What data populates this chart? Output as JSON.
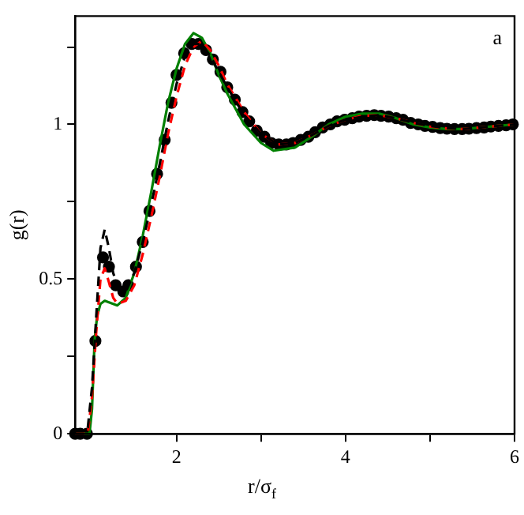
{
  "chart_data": {
    "type": "line",
    "xlabel": "r/σ$_{f}$",
    "ylabel": "g(r)",
    "annotations": [
      "a"
    ],
    "xlim": [
      0.8,
      6
    ],
    "ylim": [
      0,
      1.35
    ],
    "xticks": [
      2,
      {
        "value": 3,
        "label": null
      },
      4,
      {
        "value": 5,
        "label": null
      },
      6
    ],
    "yticks": [
      0,
      {
        "value": 0.25,
        "label": null
      },
      0.5,
      {
        "value": 0.75,
        "label": null
      },
      1,
      {
        "value": 1.25,
        "label": null
      }
    ],
    "grid": false,
    "legend": false,
    "series": [
      {
        "color": "#000000",
        "line_style": "dashed",
        "marker": "none",
        "x": [
          0.8,
          0.9,
          0.95,
          1.0,
          1.05,
          1.1,
          1.15,
          1.2,
          1.25,
          1.3,
          1.4,
          1.5,
          1.6,
          1.7,
          1.8,
          1.9,
          2.0,
          2.1,
          2.2,
          2.3,
          2.4,
          2.5,
          2.6,
          2.8,
          3.0,
          3.2,
          3.4,
          3.6,
          3.8,
          4.0,
          4.2,
          4.4,
          4.6,
          4.8,
          5.0,
          5.2,
          5.4,
          5.6,
          5.8,
          6.0
        ],
        "values": [
          0,
          0,
          0.02,
          0.15,
          0.38,
          0.6,
          0.66,
          0.6,
          0.52,
          0.48,
          0.46,
          0.52,
          0.62,
          0.74,
          0.87,
          1.01,
          1.13,
          1.22,
          1.26,
          1.26,
          1.22,
          1.17,
          1.12,
          1.03,
          0.97,
          0.935,
          0.94,
          0.965,
          0.995,
          1.015,
          1.025,
          1.03,
          1.02,
          1.005,
          0.995,
          0.988,
          0.985,
          0.99,
          0.995,
          1.0
        ]
      },
      {
        "color": "#ff0000",
        "line_style": "dashed",
        "marker": "none",
        "x": [
          0.8,
          0.95,
          1.0,
          1.05,
          1.1,
          1.15,
          1.2,
          1.25,
          1.3,
          1.4,
          1.5,
          1.6,
          1.7,
          1.8,
          1.9,
          2.0,
          2.1,
          2.2,
          2.3,
          2.4,
          2.5,
          2.6,
          2.8,
          3.0,
          3.2,
          3.4,
          3.6,
          3.8,
          4.0,
          4.2,
          4.4,
          4.6,
          4.8,
          5.0,
          5.2,
          5.4,
          5.6,
          5.8,
          6.0
        ],
        "values": [
          0,
          0,
          0.12,
          0.33,
          0.5,
          0.535,
          0.49,
          0.44,
          0.42,
          0.43,
          0.48,
          0.58,
          0.7,
          0.83,
          0.97,
          1.09,
          1.19,
          1.25,
          1.27,
          1.24,
          1.19,
          1.13,
          1.04,
          0.97,
          0.935,
          0.94,
          0.965,
          0.995,
          1.015,
          1.028,
          1.03,
          1.02,
          1.005,
          0.993,
          0.987,
          0.985,
          0.99,
          0.995,
          1.0
        ]
      },
      {
        "color": "#008000",
        "line_style": "solid",
        "marker": "none",
        "x": [
          0.8,
          0.97,
          1.0,
          1.03,
          1.06,
          1.1,
          1.15,
          1.2,
          1.3,
          1.4,
          1.5,
          1.6,
          1.7,
          1.8,
          1.9,
          2.0,
          2.1,
          2.2,
          2.3,
          2.4,
          2.5,
          2.6,
          2.8,
          3.0,
          3.15,
          3.4,
          3.6,
          3.8,
          4.0,
          4.2,
          4.4,
          4.6,
          4.8,
          5.0,
          5.2,
          5.4,
          5.6,
          5.8,
          6.0
        ],
        "values": [
          0,
          0,
          0.08,
          0.3,
          0.38,
          0.42,
          0.43,
          0.425,
          0.415,
          0.44,
          0.52,
          0.64,
          0.78,
          0.93,
          1.07,
          1.18,
          1.26,
          1.295,
          1.28,
          1.23,
          1.16,
          1.1,
          1.0,
          0.94,
          0.915,
          0.925,
          0.96,
          1.0,
          1.025,
          1.035,
          1.035,
          1.02,
          1.0,
          0.99,
          0.985,
          0.985,
          0.99,
          0.995,
          1.0
        ]
      },
      {
        "type": "scatter",
        "color": "#000000",
        "marker": "circle",
        "x": [
          0.8,
          0.86,
          0.94,
          1.04,
          1.13,
          1.2,
          1.28,
          1.37,
          1.43,
          1.52,
          1.6,
          1.68,
          1.77,
          1.86,
          1.94,
          2.0,
          2.09,
          2.18,
          2.26,
          2.35,
          2.43,
          2.52,
          2.6,
          2.69,
          2.78,
          2.86,
          2.95,
          3.04,
          3.12,
          3.21,
          3.3,
          3.38,
          3.47,
          3.56,
          3.64,
          3.73,
          3.82,
          3.9,
          3.99,
          4.08,
          4.16,
          4.25,
          4.34,
          4.42,
          4.51,
          4.6,
          4.68,
          4.77,
          4.86,
          4.94,
          5.03,
          5.12,
          5.2,
          5.29,
          5.38,
          5.46,
          5.55,
          5.64,
          5.72,
          5.81,
          5.9,
          5.98
        ],
        "values": [
          0,
          0,
          0,
          0.3,
          0.57,
          0.54,
          0.48,
          0.46,
          0.48,
          0.54,
          0.62,
          0.72,
          0.84,
          0.95,
          1.07,
          1.16,
          1.23,
          1.26,
          1.26,
          1.24,
          1.21,
          1.17,
          1.12,
          1.08,
          1.04,
          1.01,
          0.98,
          0.96,
          0.94,
          0.935,
          0.935,
          0.94,
          0.95,
          0.96,
          0.975,
          0.99,
          1.0,
          1.01,
          1.015,
          1.02,
          1.025,
          1.028,
          1.03,
          1.028,
          1.025,
          1.02,
          1.015,
          1.005,
          1.0,
          0.995,
          0.992,
          0.988,
          0.986,
          0.985,
          0.985,
          0.986,
          0.988,
          0.99,
          0.993,
          0.995,
          0.997,
          1.0
        ]
      }
    ]
  }
}
